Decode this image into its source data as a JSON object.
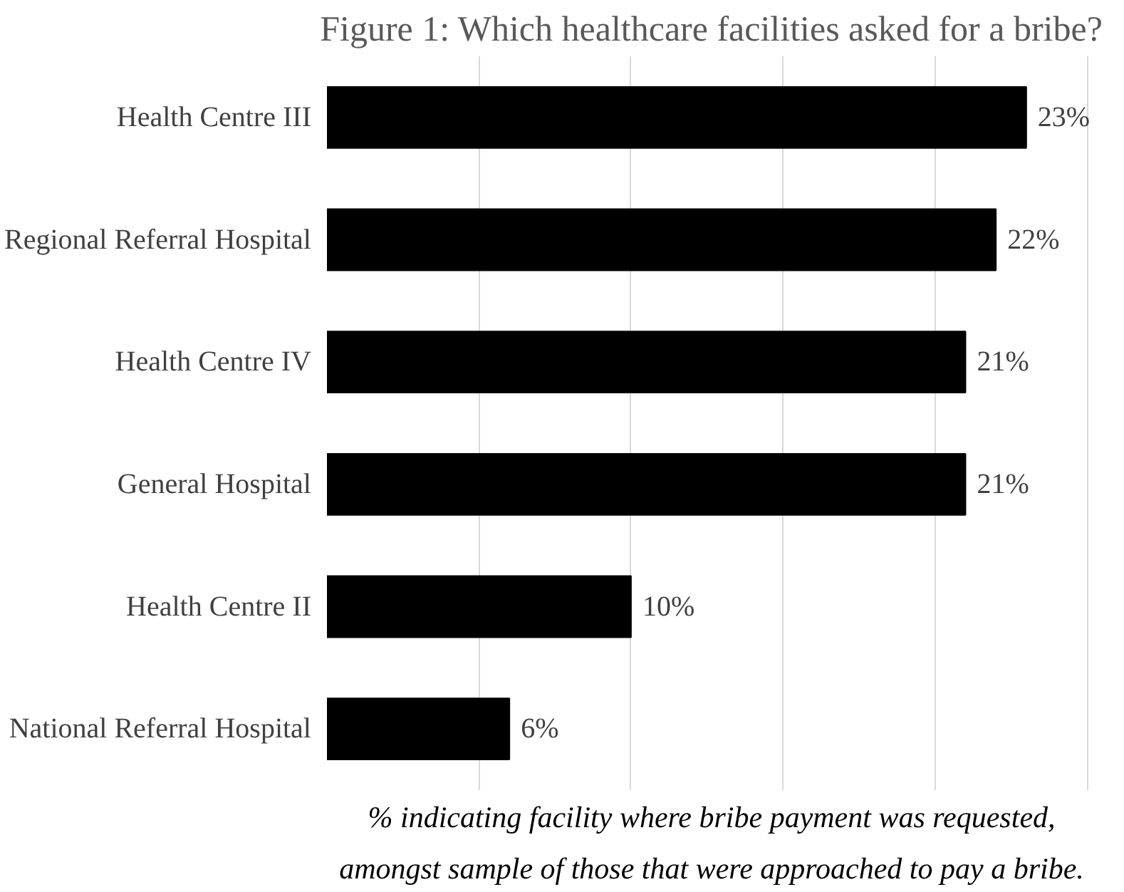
{
  "chart_data": {
    "type": "bar",
    "orientation": "horizontal",
    "title": "Figure 1: Which healthcare facilities asked for a bribe?",
    "categories": [
      "Health Centre III",
      "Regional Referral Hospital",
      "Health Centre IV",
      "General Hospital",
      "Health Centre II",
      "National Referral Hospital"
    ],
    "values": [
      23,
      22,
      21,
      21,
      10,
      6
    ],
    "value_labels": [
      "23%",
      "22%",
      "21%",
      "21%",
      "10%",
      "6%"
    ],
    "color": "#000000",
    "tick_labels": "y",
    "grid": "x",
    "annotations": [
      "% indicating facility where bribe payment was requested,",
      "amongst sample of those that were approached to pay a bribe."
    ]
  }
}
